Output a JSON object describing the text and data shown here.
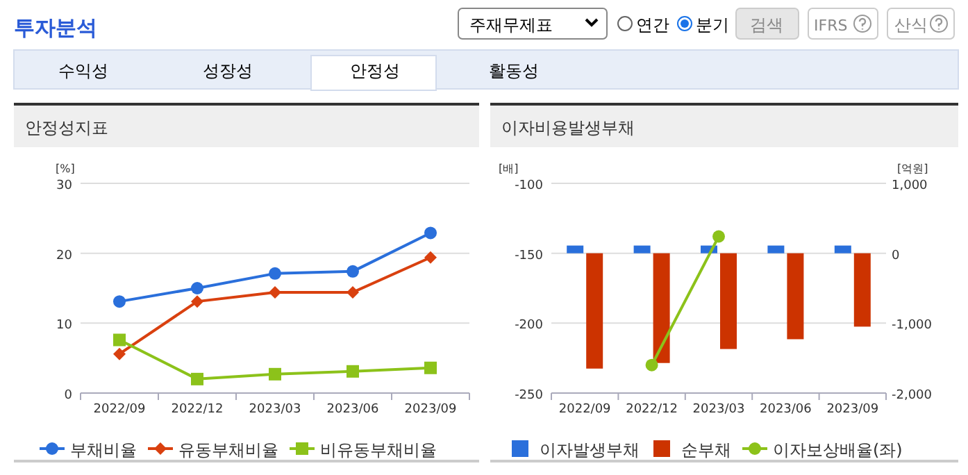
{
  "chart_data": [
    {
      "type": "other",
      "title": "투자분석",
      "annotations": [
        "주재무제표",
        "연간",
        "분기",
        "검색",
        "IFRS",
        "산식",
        "수익성",
        "성장성",
        "안정성",
        "활동성"
      ]
    },
    {
      "type": "line",
      "title": "안정성지표",
      "ylabel": "[%]",
      "categories": [
        "2022/09",
        "2022/12",
        "2023/03",
        "2023/06",
        "2023/09"
      ],
      "ylim": [
        0,
        30
      ],
      "yticks": [
        0,
        10,
        20,
        30
      ],
      "grid": "y",
      "legend": "bottom",
      "series": [
        {
          "name": "부채비율",
          "color": "#2a6fdb",
          "marker": "circle",
          "values": [
            13.1,
            15.0,
            17.1,
            17.4,
            22.9
          ]
        },
        {
          "name": "유동부채비율",
          "color": "#d9400f",
          "marker": "diamond",
          "values": [
            5.6,
            13.1,
            14.4,
            14.4,
            19.4
          ]
        },
        {
          "name": "비유동부채비율",
          "color": "#8cc21a",
          "marker": "square",
          "values": [
            7.6,
            2.0,
            2.7,
            3.1,
            3.6
          ]
        }
      ]
    },
    {
      "type": "bar",
      "title": "이자비용발생부채",
      "ylabel": "[배]",
      "y2label": "[억원]",
      "categories": [
        "2022/09",
        "2022/12",
        "2023/03",
        "2023/06",
        "2023/09"
      ],
      "ylim": [
        -250,
        -100
      ],
      "yticks": [
        -250,
        -200,
        -150,
        -100
      ],
      "y2lim": [
        -2000,
        1000
      ],
      "y2ticks": [
        {
          "value": -2000,
          "label": "-2,000"
        },
        {
          "value": -1000,
          "label": "-1,000"
        },
        0,
        {
          "value": 1000,
          "label": "1,000"
        }
      ],
      "grid": "y",
      "legend": "bottom",
      "series": [
        {
          "name": "이자발생부채",
          "color": "#2a6fdb",
          "axis": "y2",
          "values": [
            110,
            110,
            110,
            110,
            110
          ]
        },
        {
          "name": "순부채",
          "color": "#cc3300",
          "axis": "y2",
          "values": [
            -1650,
            -1570,
            -1370,
            -1230,
            -1050
          ]
        },
        {
          "name": "이자보상배율(좌)",
          "color": "#8cc21a",
          "type": "line",
          "marker": "circle",
          "values": [
            null,
            -230,
            -138,
            null,
            null
          ]
        }
      ]
    }
  ]
}
